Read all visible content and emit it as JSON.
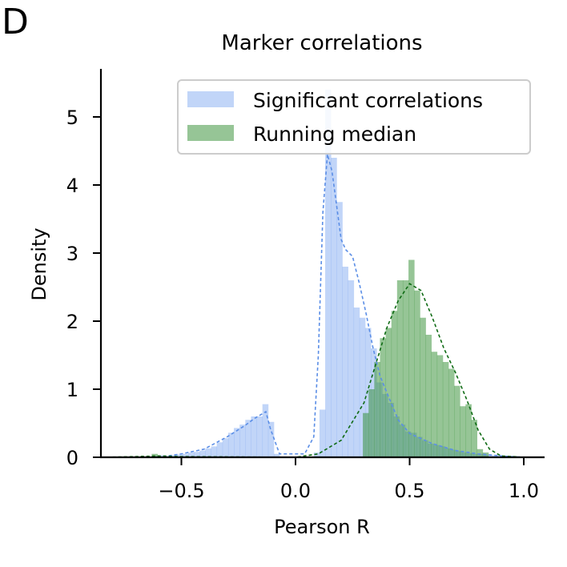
{
  "panel_label": "D",
  "chart_data": {
    "type": "histogram",
    "title": "Marker correlations",
    "xlabel": "Pearson R",
    "ylabel": "Density",
    "xlim": [
      -0.85,
      1.08
    ],
    "ylim": [
      0,
      5.75
    ],
    "xticks": [
      -0.5,
      0.0,
      0.5,
      1.0
    ],
    "xtick_labels": [
      "−0.5",
      "0.0",
      "0.5",
      "1.0"
    ],
    "yticks": [
      0,
      1,
      2,
      3,
      4,
      5
    ],
    "ytick_labels": [
      "0",
      "1",
      "2",
      "3",
      "4",
      "5"
    ],
    "grid": false,
    "legend_position": "top-right",
    "series": [
      {
        "name": "Significant correlations",
        "color": "#6495ed",
        "bin_width": 0.025,
        "bins": [
          [
            -0.62,
            0.02
          ],
          [
            -0.595,
            0.03
          ],
          [
            -0.57,
            0.02
          ],
          [
            -0.545,
            0.03
          ],
          [
            -0.52,
            0.04
          ],
          [
            -0.495,
            0.05
          ],
          [
            -0.47,
            0.07
          ],
          [
            -0.445,
            0.08
          ],
          [
            -0.42,
            0.1
          ],
          [
            -0.395,
            0.13
          ],
          [
            -0.37,
            0.16
          ],
          [
            -0.345,
            0.22
          ],
          [
            -0.32,
            0.28
          ],
          [
            -0.295,
            0.36
          ],
          [
            -0.27,
            0.43
          ],
          [
            -0.245,
            0.48
          ],
          [
            -0.22,
            0.55
          ],
          [
            -0.195,
            0.6
          ],
          [
            -0.17,
            0.6
          ],
          [
            -0.145,
            0.78
          ],
          [
            -0.12,
            0.52
          ],
          [
            -0.095,
            0.05
          ],
          [
            0.08,
            0.07
          ],
          [
            0.105,
            0.7
          ],
          [
            0.13,
            5.4
          ],
          [
            0.155,
            4.4
          ],
          [
            0.18,
            3.75
          ],
          [
            0.205,
            2.8
          ],
          [
            0.23,
            2.6
          ],
          [
            0.255,
            2.2
          ],
          [
            0.28,
            2.05
          ],
          [
            0.305,
            1.9
          ],
          [
            0.33,
            1.6
          ],
          [
            0.355,
            1.1
          ],
          [
            0.38,
            0.93
          ],
          [
            0.405,
            0.8
          ],
          [
            0.43,
            0.6
          ],
          [
            0.455,
            0.48
          ],
          [
            0.48,
            0.38
          ],
          [
            0.505,
            0.36
          ],
          [
            0.53,
            0.3
          ],
          [
            0.555,
            0.25
          ],
          [
            0.58,
            0.2
          ],
          [
            0.605,
            0.18
          ],
          [
            0.63,
            0.16
          ],
          [
            0.655,
            0.13
          ],
          [
            0.68,
            0.11
          ],
          [
            0.705,
            0.09
          ],
          [
            0.73,
            0.07
          ],
          [
            0.755,
            0.06
          ],
          [
            0.78,
            0.05
          ],
          [
            0.805,
            0.05
          ],
          [
            0.83,
            0.04
          ],
          [
            0.855,
            0.03
          ],
          [
            0.88,
            0.03
          ],
          [
            0.905,
            0.02
          ]
        ],
        "kde": [
          [
            -0.85,
            0.0
          ],
          [
            -0.6,
            0.0
          ],
          [
            -0.5,
            0.05
          ],
          [
            -0.4,
            0.12
          ],
          [
            -0.3,
            0.3
          ],
          [
            -0.22,
            0.47
          ],
          [
            -0.18,
            0.57
          ],
          [
            -0.15,
            0.63
          ],
          [
            -0.13,
            0.67
          ],
          [
            -0.11,
            0.42
          ],
          [
            -0.07,
            0.05
          ],
          [
            0.04,
            0.05
          ],
          [
            0.08,
            0.3
          ],
          [
            0.1,
            1.5
          ],
          [
            0.12,
            3.6
          ],
          [
            0.14,
            4.45
          ],
          [
            0.16,
            4.2
          ],
          [
            0.18,
            3.7
          ],
          [
            0.2,
            3.2
          ],
          [
            0.22,
            3.05
          ],
          [
            0.25,
            2.95
          ],
          [
            0.28,
            2.55
          ],
          [
            0.31,
            2.1
          ],
          [
            0.34,
            1.6
          ],
          [
            0.37,
            1.2
          ],
          [
            0.4,
            0.95
          ],
          [
            0.45,
            0.55
          ],
          [
            0.5,
            0.35
          ],
          [
            0.6,
            0.2
          ],
          [
            0.7,
            0.1
          ],
          [
            0.8,
            0.05
          ],
          [
            0.9,
            0.02
          ],
          [
            1.0,
            0.0
          ]
        ]
      },
      {
        "name": "Running median",
        "color": "#2e8b2e",
        "bin_width": 0.025,
        "bins": [
          [
            -0.63,
            0.05
          ],
          [
            0.295,
            0.65
          ],
          [
            0.32,
            1.0
          ],
          [
            0.345,
            1.4
          ],
          [
            0.37,
            1.75
          ],
          [
            0.395,
            1.9
          ],
          [
            0.42,
            2.15
          ],
          [
            0.445,
            2.6
          ],
          [
            0.47,
            2.6
          ],
          [
            0.495,
            2.9
          ],
          [
            0.52,
            2.45
          ],
          [
            0.545,
            2.05
          ],
          [
            0.57,
            1.8
          ],
          [
            0.595,
            1.55
          ],
          [
            0.62,
            1.5
          ],
          [
            0.645,
            1.4
          ],
          [
            0.67,
            1.3
          ],
          [
            0.695,
            1.05
          ],
          [
            0.72,
            0.75
          ],
          [
            0.745,
            0.78
          ],
          [
            0.77,
            0.55
          ],
          [
            0.795,
            0.12
          ],
          [
            0.82,
            0.07
          ]
        ],
        "kde": [
          [
            -0.85,
            0.0
          ],
          [
            -0.7,
            0.01
          ],
          [
            -0.6,
            0.02
          ],
          [
            -0.5,
            0.01
          ],
          [
            0.0,
            0.0
          ],
          [
            0.1,
            0.05
          ],
          [
            0.2,
            0.25
          ],
          [
            0.3,
            0.8
          ],
          [
            0.35,
            1.35
          ],
          [
            0.4,
            1.9
          ],
          [
            0.45,
            2.3
          ],
          [
            0.5,
            2.55
          ],
          [
            0.55,
            2.45
          ],
          [
            0.6,
            2.05
          ],
          [
            0.65,
            1.6
          ],
          [
            0.7,
            1.25
          ],
          [
            0.75,
            0.85
          ],
          [
            0.8,
            0.4
          ],
          [
            0.85,
            0.12
          ],
          [
            0.9,
            0.02
          ],
          [
            1.0,
            0.0
          ]
        ]
      }
    ]
  }
}
